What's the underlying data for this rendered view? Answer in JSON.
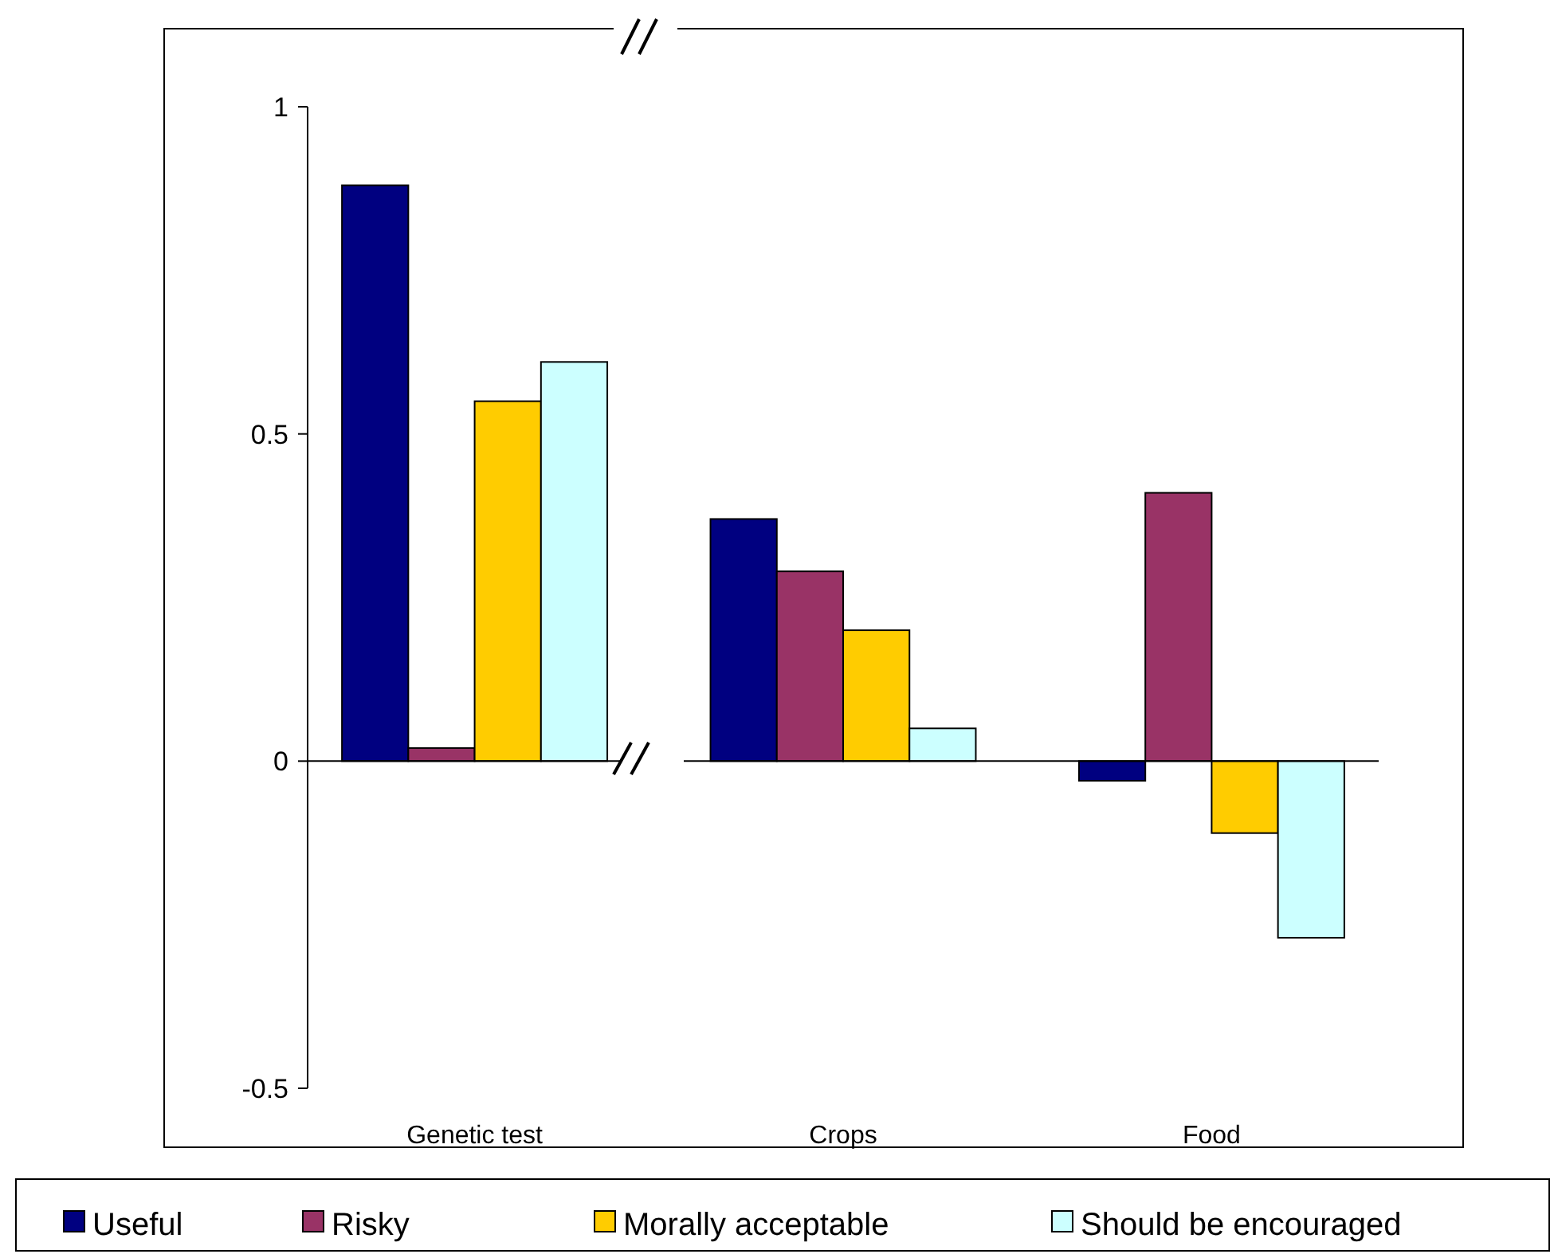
{
  "chart_data": {
    "type": "bar",
    "categories": [
      "Genetic test",
      "Crops",
      "Food"
    ],
    "series": [
      {
        "name": "Useful",
        "color": "#000080",
        "values": [
          0.88,
          0.37,
          -0.03
        ]
      },
      {
        "name": "Risky",
        "color": "#993366",
        "values": [
          0.02,
          0.29,
          0.41
        ]
      },
      {
        "name": "Morally acceptable",
        "color": "#ffcc00",
        "values": [
          0.55,
          0.2,
          -0.11
        ]
      },
      {
        "name": "Should be encouraged",
        "color": "#ccffff",
        "values": [
          0.61,
          0.05,
          -0.27
        ]
      }
    ],
    "ylim": [
      -0.5,
      1
    ],
    "yticks": [
      -0.5,
      0,
      0.5,
      1
    ],
    "legend": "bottom"
  }
}
